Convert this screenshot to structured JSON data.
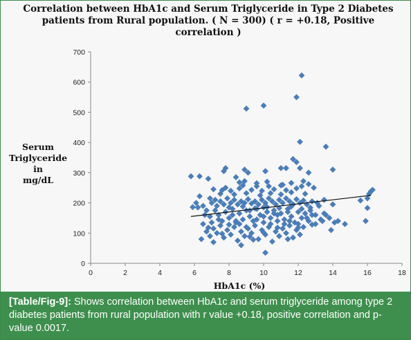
{
  "chart_data": {
    "type": "scatter",
    "title_lines": [
      "Correlation between HbA1c and Serum Triglyceride in Type 2 Diabetes",
      "patients from Rural population. ( N = 300) ( r = +0.18, Positive",
      "correlation )"
    ],
    "ylabel_lines": [
      "Serum",
      "Triglyceride in",
      "mg/dL"
    ],
    "xlabel": "HbA1c (%)",
    "xlim": [
      0,
      18
    ],
    "ylim": [
      0,
      700
    ],
    "x_ticks": [
      0,
      2,
      4,
      6,
      8,
      10,
      12,
      14,
      16,
      18
    ],
    "y_ticks": [
      0,
      100,
      200,
      300,
      400,
      500,
      600,
      700
    ],
    "marker": "diamond",
    "marker_color": "#4a7ebb",
    "trendline": {
      "x": [
        5.8,
        16.2
      ],
      "y": [
        155,
        225
      ]
    },
    "grid": false,
    "points": [
      [
        12.2,
        622
      ],
      [
        9.0,
        512
      ],
      [
        10.0,
        522
      ],
      [
        11.9,
        550
      ],
      [
        12.1,
        402
      ],
      [
        13.6,
        386
      ],
      [
        11.7,
        345
      ],
      [
        11.9,
        335
      ],
      [
        12.1,
        315
      ],
      [
        14.0,
        310
      ],
      [
        12.6,
        300
      ],
      [
        11.0,
        315
      ],
      [
        11.3,
        315
      ],
      [
        7.8,
        315
      ],
      [
        7.7,
        305
      ],
      [
        8.9,
        310
      ],
      [
        10.1,
        305
      ],
      [
        9.1,
        300
      ],
      [
        5.8,
        288
      ],
      [
        6.3,
        288
      ],
      [
        6.8,
        280
      ],
      [
        8.4,
        285
      ],
      [
        8.6,
        268
      ],
      [
        8.9,
        272
      ],
      [
        9.6,
        255
      ],
      [
        10.3,
        255
      ],
      [
        11.1,
        260
      ],
      [
        12.3,
        272
      ],
      [
        12.6,
        262
      ],
      [
        7.1,
        245
      ],
      [
        7.6,
        242
      ],
      [
        8.1,
        240
      ],
      [
        8.6,
        248
      ],
      [
        9.3,
        243
      ],
      [
        9.9,
        240
      ],
      [
        10.6,
        245
      ],
      [
        11.3,
        242
      ],
      [
        11.9,
        248
      ],
      [
        6.3,
        222
      ],
      [
        6.1,
        200
      ],
      [
        5.9,
        186
      ],
      [
        6.5,
        190
      ],
      [
        6.9,
        215
      ],
      [
        7.2,
        210
      ],
      [
        7.5,
        205
      ],
      [
        7.7,
        195
      ],
      [
        7.9,
        215
      ],
      [
        8.1,
        200
      ],
      [
        8.3,
        210
      ],
      [
        8.5,
        195
      ],
      [
        8.7,
        205
      ],
      [
        8.9,
        200
      ],
      [
        9.1,
        212
      ],
      [
        9.3,
        198
      ],
      [
        9.5,
        205
      ],
      [
        9.7,
        195
      ],
      [
        9.9,
        210
      ],
      [
        10.1,
        200
      ],
      [
        10.3,
        215
      ],
      [
        10.5,
        205
      ],
      [
        10.7,
        195
      ],
      [
        10.9,
        210
      ],
      [
        11.1,
        200
      ],
      [
        11.3,
        215
      ],
      [
        11.5,
        205
      ],
      [
        11.7,
        195
      ],
      [
        11.9,
        212
      ],
      [
        12.1,
        200
      ],
      [
        12.3,
        208
      ],
      [
        12.5,
        195
      ],
      [
        12.8,
        205
      ],
      [
        13.2,
        190
      ],
      [
        13.5,
        210
      ],
      [
        14.0,
        195
      ],
      [
        15.6,
        208
      ],
      [
        16.0,
        215
      ],
      [
        16.1,
        230
      ],
      [
        16.2,
        238
      ],
      [
        16.3,
        243
      ],
      [
        16.0,
        183
      ],
      [
        15.9,
        140
      ],
      [
        6.2,
        185
      ],
      [
        6.5,
        130
      ],
      [
        6.7,
        175
      ],
      [
        6.9,
        155
      ],
      [
        7.0,
        135
      ],
      [
        7.2,
        175
      ],
      [
        7.4,
        160
      ],
      [
        7.6,
        140
      ],
      [
        7.8,
        170
      ],
      [
        8.0,
        150
      ],
      [
        8.2,
        180
      ],
      [
        8.4,
        135
      ],
      [
        8.6,
        165
      ],
      [
        8.8,
        145
      ],
      [
        9.0,
        175
      ],
      [
        9.2,
        155
      ],
      [
        9.4,
        140
      ],
      [
        9.6,
        180
      ],
      [
        9.8,
        160
      ],
      [
        10.0,
        135
      ],
      [
        10.2,
        170
      ],
      [
        10.4,
        150
      ],
      [
        10.6,
        175
      ],
      [
        10.8,
        140
      ],
      [
        11.0,
        165
      ],
      [
        11.2,
        145
      ],
      [
        11.4,
        180
      ],
      [
        11.6,
        155
      ],
      [
        11.8,
        135
      ],
      [
        12.0,
        170
      ],
      [
        12.2,
        150
      ],
      [
        12.4,
        165
      ],
      [
        12.6,
        140
      ],
      [
        12.8,
        160
      ],
      [
        13.0,
        130
      ],
      [
        13.3,
        145
      ],
      [
        13.6,
        160
      ],
      [
        13.8,
        150
      ],
      [
        14.1,
        135
      ],
      [
        6.4,
        80
      ],
      [
        6.7,
        105
      ],
      [
        6.9,
        90
      ],
      [
        7.1,
        115
      ],
      [
        7.3,
        100
      ],
      [
        7.5,
        125
      ],
      [
        7.7,
        85
      ],
      [
        7.9,
        110
      ],
      [
        8.1,
        95
      ],
      [
        8.3,
        120
      ],
      [
        8.5,
        75
      ],
      [
        8.7,
        105
      ],
      [
        8.9,
        90
      ],
      [
        9.1,
        115
      ],
      [
        9.3,
        100
      ],
      [
        9.5,
        125
      ],
      [
        9.7,
        80
      ],
      [
        9.9,
        110
      ],
      [
        10.1,
        95
      ],
      [
        10.3,
        120
      ],
      [
        10.5,
        72
      ],
      [
        10.7,
        105
      ],
      [
        10.9,
        90
      ],
      [
        11.1,
        115
      ],
      [
        11.3,
        100
      ],
      [
        11.5,
        125
      ],
      [
        11.7,
        85
      ],
      [
        11.9,
        110
      ],
      [
        12.1,
        95
      ],
      [
        12.3,
        120
      ],
      [
        10.1,
        35
      ],
      [
        14.3,
        140
      ],
      [
        14.7,
        130
      ],
      [
        13.9,
        110
      ],
      [
        7.1,
        70
      ],
      [
        8.7,
        60
      ],
      [
        9.4,
        78
      ],
      [
        7.5,
        230
      ],
      [
        8.3,
        228
      ],
      [
        9.0,
        232
      ],
      [
        9.8,
        225
      ],
      [
        10.4,
        232
      ],
      [
        11.0,
        228
      ],
      [
        11.6,
        235
      ],
      [
        12.4,
        230
      ],
      [
        7.3,
        190
      ],
      [
        8.0,
        185
      ],
      [
        8.8,
        188
      ],
      [
        9.5,
        182
      ],
      [
        10.2,
        186
      ],
      [
        10.9,
        183
      ],
      [
        11.6,
        188
      ],
      [
        12.7,
        184
      ],
      [
        13.1,
        200
      ],
      [
        6.6,
        160
      ],
      [
        7.0,
        200
      ],
      [
        7.4,
        145
      ],
      [
        8.2,
        160
      ],
      [
        8.6,
        130
      ],
      [
        9.0,
        120
      ],
      [
        9.6,
        145
      ],
      [
        10.0,
        155
      ],
      [
        10.4,
        130
      ],
      [
        10.8,
        160
      ],
      [
        11.2,
        130
      ],
      [
        11.5,
        140
      ],
      [
        12.0,
        130
      ],
      [
        12.5,
        150
      ],
      [
        13.0,
        160
      ],
      [
        13.4,
        140
      ],
      [
        7.8,
        250
      ],
      [
        8.8,
        258
      ],
      [
        9.6,
        265
      ],
      [
        10.2,
        270
      ],
      [
        11.0,
        258
      ],
      [
        11.6,
        266
      ],
      [
        12.2,
        255
      ],
      [
        12.9,
        250
      ],
      [
        9.2,
        175
      ],
      [
        10.0,
        185
      ],
      [
        10.6,
        165
      ],
      [
        11.4,
        170
      ],
      [
        12.2,
        180
      ],
      [
        12.7,
        175
      ],
      [
        13.5,
        165
      ],
      [
        7.6,
        98
      ],
      [
        8.4,
        140
      ],
      [
        9.2,
        88
      ],
      [
        10.0,
        102
      ],
      [
        10.8,
        118
      ],
      [
        11.4,
        80
      ],
      [
        12.0,
        118
      ],
      [
        12.8,
        128
      ],
      [
        6.8,
        118
      ],
      [
        8.0,
        128
      ]
    ]
  },
  "caption": {
    "label": "[Table/Fig-9]:",
    "text": " Shows correlation between HbA1c and serum triglyceride among type 2 diabetes patients from rural population with r value +0.18, positive correlation and p-value 0.0017."
  }
}
